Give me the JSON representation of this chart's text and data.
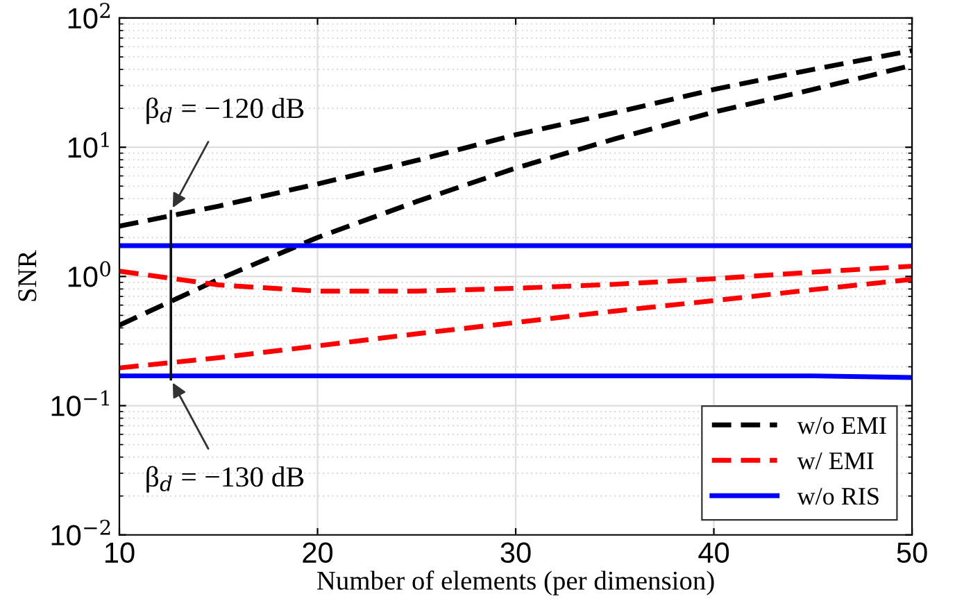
{
  "chart_data": {
    "type": "line",
    "xlabel": "Number of elements (per dimension)",
    "ylabel": "SNR",
    "x": [
      10,
      15,
      20,
      25,
      30,
      35,
      40,
      45,
      50
    ],
    "series": [
      {
        "name": "w/o EMI",
        "color": "#000000",
        "line_style": "dashed",
        "values": [
          2.45,
          3.5,
          5.2,
          7.9,
          12.5,
          18.5,
          28,
          40,
          56
        ]
      },
      {
        "color": "#000000",
        "line_style": "dashed",
        "values": [
          0.42,
          0.95,
          2.0,
          3.8,
          6.9,
          11.6,
          18.7,
          28,
          43
        ]
      },
      {
        "name": "w/ EMI",
        "color": "#ff0000",
        "line_style": "dashed",
        "values": [
          1.1,
          0.86,
          0.77,
          0.77,
          0.81,
          0.87,
          0.96,
          1.08,
          1.2
        ]
      },
      {
        "color": "#ff0000",
        "line_style": "dashed",
        "values": [
          0.196,
          0.235,
          0.29,
          0.36,
          0.44,
          0.54,
          0.65,
          0.79,
          0.95
        ]
      },
      {
        "name": "w/o RIS",
        "color": "#0000ff",
        "line_style": "solid",
        "values": [
          1.73,
          1.73,
          1.73,
          1.73,
          1.73,
          1.73,
          1.73,
          1.73,
          1.73
        ]
      },
      {
        "color": "#0000ff",
        "line_style": "solid",
        "values": [
          0.17,
          0.17,
          0.17,
          0.17,
          0.17,
          0.17,
          0.17,
          0.17,
          0.165
        ]
      }
    ],
    "annotations": [
      {
        "text": "β$_{d}$ = −120 dB",
        "x": 12.6,
        "y": 3.2
      },
      {
        "text": "β$_{d}$ = −130 dB",
        "x": 12.6,
        "y": 0.16
      }
    ],
    "log": "y",
    "xlim": [
      10,
      50
    ],
    "xticks": [
      10,
      20,
      30,
      40,
      50
    ],
    "ylim": [
      0.01,
      100
    ],
    "yticks": [
      {
        "value": 0.01,
        "label": "10$^{−2}$"
      },
      {
        "value": 0.1,
        "label": "10$^{−1}$"
      },
      {
        "value": 1,
        "label": "10$^{0}$"
      },
      {
        "value": 10,
        "label": "10$^{1}$"
      },
      {
        "value": 100,
        "label": "10$^{2}$"
      }
    ],
    "grid": true,
    "legend": "bottom right",
    "marker": "none"
  }
}
